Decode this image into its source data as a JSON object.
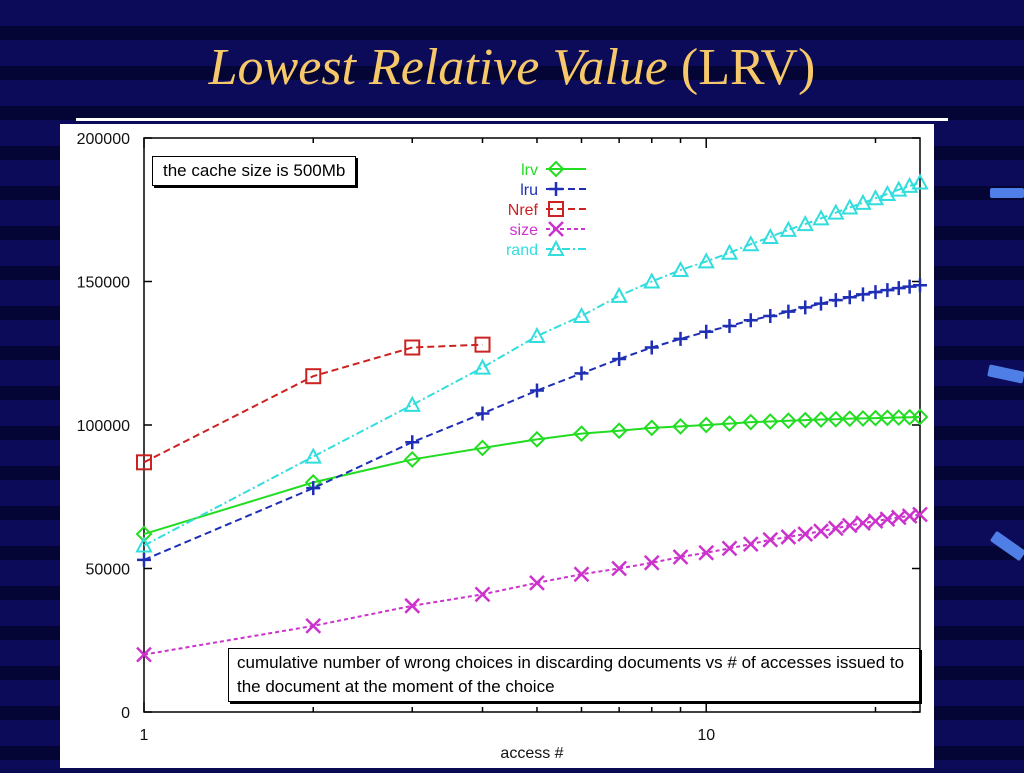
{
  "slide": {
    "title_italic": "Lowest Relative Value",
    "title_plain": "(LRV)"
  },
  "chart_data": {
    "type": "line",
    "x_scale": "log",
    "xlabel": "access #",
    "ylabel": "",
    "xlim": [
      1,
      24
    ],
    "ylim": [
      0,
      200000
    ],
    "x_ticks": [
      {
        "value": 1,
        "label": "1"
      },
      {
        "value": 10,
        "label": "10"
      }
    ],
    "y_ticks": [
      {
        "value": 0,
        "label": "0"
      },
      {
        "value": 50000,
        "label": "50000"
      },
      {
        "value": 100000,
        "label": "100000"
      },
      {
        "value": 150000,
        "label": "150000"
      },
      {
        "value": 200000,
        "label": "200000"
      }
    ],
    "grid": false,
    "legend_position": "top-center",
    "annotations": [
      "the cache size is 500Mb",
      "cumulative number of wrong choices in discarding documents vs # of accesses issued to the document at the moment of the choice"
    ],
    "series": [
      {
        "name": "lrv",
        "color": "#22dd22",
        "marker": "diamond",
        "dash": "solid",
        "x": [
          1,
          2,
          3,
          4,
          5,
          6,
          7,
          8,
          9,
          10,
          11,
          12,
          13,
          14,
          15,
          16,
          17,
          18,
          19,
          20,
          21,
          22,
          23,
          24
        ],
        "y": [
          62000,
          80000,
          88000,
          92000,
          95000,
          97000,
          98000,
          99000,
          99500,
          100000,
          100500,
          101000,
          101200,
          101500,
          101700,
          101900,
          102000,
          102200,
          102300,
          102400,
          102500,
          102600,
          102700,
          102800
        ]
      },
      {
        "name": "lru",
        "color": "#1f2fb5",
        "marker": "plus",
        "dash": "dashed",
        "x": [
          1,
          2,
          3,
          4,
          5,
          6,
          7,
          8,
          9,
          10,
          11,
          12,
          13,
          14,
          15,
          16,
          17,
          18,
          19,
          20,
          21,
          22,
          23,
          24
        ],
        "y": [
          53000,
          78000,
          94000,
          104000,
          112000,
          118000,
          123000,
          127000,
          130000,
          132500,
          134500,
          136500,
          138000,
          139500,
          141000,
          142300,
          143500,
          144500,
          145500,
          146300,
          147000,
          147700,
          148200,
          148700
        ]
      },
      {
        "name": "Nref",
        "color": "#cc2222",
        "marker": "square",
        "dash": "dashed",
        "x": [
          1,
          2,
          3,
          4
        ],
        "y": [
          87000,
          117000,
          127000,
          128000
        ]
      },
      {
        "name": "size",
        "color": "#cc33cc",
        "marker": "cross",
        "dash": "dotted",
        "x": [
          1,
          2,
          3,
          4,
          5,
          6,
          7,
          8,
          9,
          10,
          11,
          12,
          13,
          14,
          15,
          16,
          17,
          18,
          19,
          20,
          21,
          22,
          23,
          24
        ],
        "y": [
          20000,
          30000,
          37000,
          41000,
          45000,
          48000,
          50000,
          52000,
          54000,
          55500,
          57000,
          58500,
          60000,
          61000,
          62000,
          63000,
          64000,
          65000,
          65800,
          66500,
          67200,
          67800,
          68300,
          68800
        ]
      },
      {
        "name": "rand",
        "color": "#33dddd",
        "marker": "triangle",
        "dash": "dashdot",
        "x": [
          1,
          2,
          3,
          4,
          5,
          6,
          7,
          8,
          9,
          10,
          11,
          12,
          13,
          14,
          15,
          16,
          17,
          18,
          19,
          20,
          21,
          22,
          23,
          24
        ],
        "y": [
          58000,
          89000,
          107000,
          120000,
          131000,
          138000,
          145000,
          150000,
          154000,
          157000,
          160000,
          163000,
          165500,
          168000,
          170000,
          172000,
          174000,
          175800,
          177400,
          179000,
          180500,
          182000,
          183300,
          184500
        ]
      }
    ]
  }
}
